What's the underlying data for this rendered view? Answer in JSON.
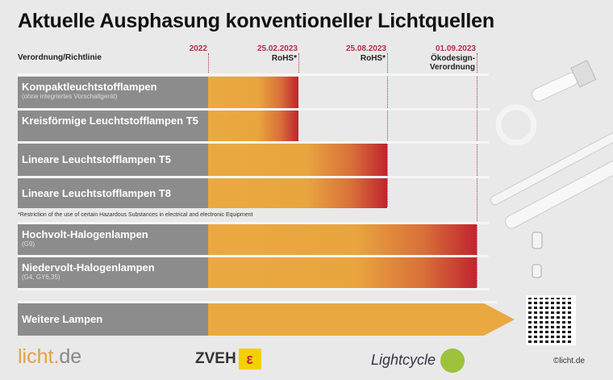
{
  "title": "Aktuelle Ausphasung konventioneller Lichtquellen",
  "header_label": "Verordnung/Richtlinie",
  "dates": [
    {
      "date": "2022",
      "sub": ""
    },
    {
      "date": "25.02.2023",
      "sub": "RoHS*"
    },
    {
      "date": "25.08.2023",
      "sub": "RoHS*"
    },
    {
      "date": "01.09.2023",
      "sub": "Ökodesign-\nVerordnung"
    }
  ],
  "rows": [
    {
      "name": "Kompaktleuchtstofflampen",
      "note": "(ohne integriertes Vorschaltgerät)",
      "ends": "25.02.2023"
    },
    {
      "name": "Kreisförmige Leuchtstofflampen T5",
      "note": "",
      "ends": "25.02.2023"
    },
    {
      "name": "Lineare Leuchtstofflampen T5",
      "note": "",
      "ends": "25.08.2023"
    },
    {
      "name": "Lineare Leuchtstofflampen T8",
      "note": "",
      "ends": "25.08.2023"
    },
    {
      "name": "Hochvolt-Halogenlampen",
      "note": "(G9)",
      "ends": "01.09.2023"
    },
    {
      "name": "Niedervolt-Halogenlampen",
      "note": "(G4, GY6,35)",
      "ends": "01.09.2023"
    },
    {
      "name": "Weitere Lampen",
      "note": "",
      "ends": "open"
    }
  ],
  "footnote": "*Restriction of the use of certain Hazardous Substances in electrical and electronic Equipment",
  "logos": {
    "licht": "licht.",
    "licht_tld": "de",
    "zveh": "ZVEH",
    "lightcycle": "Lightcycle"
  },
  "copyright": "©licht.de",
  "colors": {
    "bar_start": "#eaa940",
    "bar_end": "#c0242e",
    "label_bg": "#8c8c8c",
    "date": "#b0304a"
  }
}
